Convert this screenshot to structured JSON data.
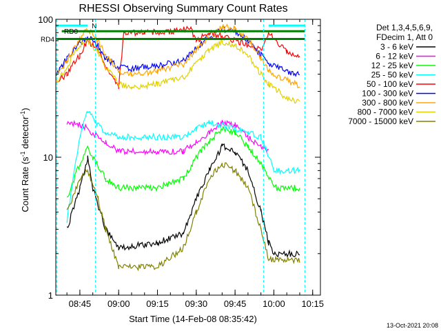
{
  "chart_data": {
    "type": "line",
    "title": "RHESSI Observing Summary Count Rates",
    "xlabel": "Start Time (14-Feb-08 08:35:42)",
    "ylabel": "Count Rate (s⁻¹ detector⁻¹)",
    "ylabel_text": "Count Rate (s",
    "ylabel_sup1": "-1",
    "ylabel_mid": " detector",
    "ylabel_sup2": "-1",
    "ylabel_end": ")",
    "x_time_range": [
      "08:35:42",
      "10:18:00"
    ],
    "x_ticks": [
      "08:45",
      "09:00",
      "09:15",
      "09:30",
      "09:45",
      "10:00",
      "10:15"
    ],
    "y_scale": "log",
    "ylim": [
      1,
      100
    ],
    "y_ticks": [
      "1",
      "10",
      "100"
    ],
    "grid": false,
    "legend_placement": "top-right outside",
    "legend_header": [
      "Det 1,3,4,5,6,9,",
      "FDecim 1, Att 0"
    ],
    "series": [
      {
        "name": "3 - 6 keV",
        "color": "#000000",
        "points": [
          [
            "08:40",
            3.0
          ],
          [
            "08:45",
            6
          ],
          [
            "08:48",
            10
          ],
          [
            "08:50",
            6
          ],
          [
            "08:55",
            3
          ],
          [
            "09:00",
            2.2
          ],
          [
            "09:15",
            2.4
          ],
          [
            "09:25",
            2.8
          ],
          [
            "09:30",
            5
          ],
          [
            "09:35",
            8
          ],
          [
            "09:40",
            12
          ],
          [
            "09:45",
            11
          ],
          [
            "09:50",
            8
          ],
          [
            "09:55",
            4
          ],
          [
            "09:58",
            2.4
          ],
          [
            "10:00",
            2.0
          ],
          [
            "10:10",
            2.0
          ]
        ]
      },
      {
        "name": "6 - 12 keV",
        "color": "#ff00ff",
        "points": [
          [
            "08:40",
            18
          ],
          [
            "08:46",
            17
          ],
          [
            "08:50",
            15
          ],
          [
            "08:55",
            13
          ],
          [
            "09:00",
            11
          ],
          [
            "09:15",
            11
          ],
          [
            "09:25",
            11
          ],
          [
            "09:30",
            13
          ],
          [
            "09:35",
            15
          ],
          [
            "09:40",
            18
          ],
          [
            "09:45",
            17
          ],
          [
            "09:50",
            14
          ],
          [
            "09:55",
            12
          ],
          [
            "09:58",
            11
          ]
        ]
      },
      {
        "name": "12 - 25 keV",
        "color": "#00ff00",
        "points": [
          [
            "08:40",
            5
          ],
          [
            "08:45",
            9
          ],
          [
            "08:48",
            12
          ],
          [
            "08:50",
            10
          ],
          [
            "08:55",
            7
          ],
          [
            "09:00",
            6
          ],
          [
            "09:15",
            6
          ],
          [
            "09:25",
            7
          ],
          [
            "09:30",
            10
          ],
          [
            "09:35",
            13
          ],
          [
            "09:40",
            16
          ],
          [
            "09:45",
            15
          ],
          [
            "09:50",
            12
          ],
          [
            "09:55",
            9
          ],
          [
            "10:00",
            6
          ],
          [
            "10:10",
            6
          ]
        ]
      },
      {
        "name": "25 - 50 keV",
        "color": "#00ffff",
        "points": [
          [
            "08:40",
            3.5
          ],
          [
            "08:45",
            14
          ],
          [
            "08:48",
            22
          ],
          [
            "08:50",
            19
          ],
          [
            "08:55",
            15
          ],
          [
            "09:00",
            14
          ],
          [
            "09:15",
            14
          ],
          [
            "09:25",
            14
          ],
          [
            "09:30",
            16
          ],
          [
            "09:35",
            18
          ],
          [
            "09:40",
            17
          ],
          [
            "09:45",
            16
          ],
          [
            "09:50",
            15
          ],
          [
            "09:55",
            14
          ],
          [
            "10:00",
            8
          ],
          [
            "10:10",
            8
          ]
        ]
      },
      {
        "name": "50 - 100 keV",
        "color": "#ff0000",
        "points": [
          [
            "08:36",
            35
          ],
          [
            "08:40",
            40
          ],
          [
            "08:45",
            55
          ],
          [
            "08:48",
            70
          ],
          [
            "08:52",
            60
          ],
          [
            "08:55",
            45
          ],
          [
            "09:00",
            32
          ],
          [
            "09:02",
            80
          ],
          [
            "09:10",
            80
          ],
          [
            "09:20",
            82
          ],
          [
            "09:28",
            85
          ],
          [
            "09:30",
            70
          ],
          [
            "09:35",
            80
          ],
          [
            "09:40",
            75
          ],
          [
            "09:45",
            70
          ],
          [
            "09:50",
            65
          ],
          [
            "09:55",
            60
          ],
          [
            "09:58",
            80
          ],
          [
            "10:05",
            58
          ],
          [
            "10:10",
            55
          ]
        ]
      },
      {
        "name": "100 - 300 keV",
        "color": "#0000ff",
        "points": [
          [
            "08:36",
            40
          ],
          [
            "08:40",
            52
          ],
          [
            "08:45",
            68
          ],
          [
            "08:48",
            75
          ],
          [
            "08:52",
            65
          ],
          [
            "08:55",
            52
          ],
          [
            "09:00",
            45
          ],
          [
            "09:05",
            44
          ],
          [
            "09:15",
            46
          ],
          [
            "09:25",
            50
          ],
          [
            "09:30",
            62
          ],
          [
            "09:35",
            75
          ],
          [
            "09:40",
            85
          ],
          [
            "09:45",
            82
          ],
          [
            "09:50",
            70
          ],
          [
            "09:55",
            55
          ],
          [
            "09:58",
            48
          ],
          [
            "10:05",
            42
          ],
          [
            "10:10",
            40
          ]
        ]
      },
      {
        "name": "300 - 800 keV",
        "color": "#ffa500",
        "points": [
          [
            "08:36",
            38
          ],
          [
            "08:40",
            50
          ],
          [
            "08:45",
            72
          ],
          [
            "08:48",
            85
          ],
          [
            "08:52",
            70
          ],
          [
            "08:55",
            55
          ],
          [
            "09:00",
            42
          ],
          [
            "09:05",
            40
          ],
          [
            "09:15",
            42
          ],
          [
            "09:25",
            47
          ],
          [
            "09:30",
            60
          ],
          [
            "09:35",
            75
          ],
          [
            "09:40",
            88
          ],
          [
            "09:45",
            86
          ],
          [
            "09:50",
            72
          ],
          [
            "09:55",
            52
          ],
          [
            "09:58",
            42
          ],
          [
            "10:05",
            36
          ],
          [
            "10:10",
            33
          ]
        ]
      },
      {
        "name": "800 - 7000 keV",
        "color": "#e0d000",
        "points": [
          [
            "08:36",
            35
          ],
          [
            "08:40",
            45
          ],
          [
            "08:45",
            65
          ],
          [
            "08:48",
            70
          ],
          [
            "08:52",
            58
          ],
          [
            "08:55",
            45
          ],
          [
            "09:00",
            34
          ],
          [
            "09:05",
            32
          ],
          [
            "09:15",
            34
          ],
          [
            "09:25",
            38
          ],
          [
            "09:30",
            48
          ],
          [
            "09:35",
            60
          ],
          [
            "09:40",
            68
          ],
          [
            "09:45",
            65
          ],
          [
            "09:50",
            55
          ],
          [
            "09:55",
            40
          ],
          [
            "09:58",
            34
          ],
          [
            "10:05",
            27
          ],
          [
            "10:10",
            25
          ]
        ]
      },
      {
        "name": "7000 - 15000 keV",
        "color": "#808000",
        "points": [
          [
            "08:40",
            4
          ],
          [
            "08:45",
            7
          ],
          [
            "08:48",
            8
          ],
          [
            "08:52",
            5
          ],
          [
            "08:55",
            3
          ],
          [
            "09:00",
            1.6
          ],
          [
            "09:15",
            1.6
          ],
          [
            "09:25",
            2.2
          ],
          [
            "09:30",
            4
          ],
          [
            "09:35",
            7
          ],
          [
            "09:40",
            9
          ],
          [
            "09:45",
            8
          ],
          [
            "09:50",
            6
          ],
          [
            "09:55",
            3
          ],
          [
            "09:58",
            1.8
          ],
          [
            "10:05",
            1.8
          ],
          [
            "10:10",
            1.8
          ]
        ]
      }
    ],
    "state_bars": [
      {
        "label": "N",
        "color": "#00ffff",
        "y_value": 90,
        "start": "08:35:42",
        "end": "08:48"
      },
      {
        "label": "N",
        "color": "#00ffff",
        "y_value": 90,
        "start": "09:58",
        "end": "10:12"
      },
      {
        "label": "RD0",
        "color": "#008000",
        "y_value": 82,
        "start": "08:38",
        "end": "10:12"
      },
      {
        "label": "RD4",
        "color": "#008000",
        "y_value": 72,
        "start": "08:35:42",
        "end": "10:12"
      }
    ],
    "vertical_markers": [
      {
        "time": "08:36",
        "color": "#00ffff",
        "style": "dashed"
      },
      {
        "time": "08:51",
        "color": "#00ffff",
        "style": "dashed"
      },
      {
        "time": "09:56",
        "color": "#00ffff",
        "style": "dashed"
      },
      {
        "time": "10:12",
        "color": "#00ffff",
        "style": "dashed"
      }
    ],
    "footer_date": "13-Oct-2021 20:08"
  }
}
